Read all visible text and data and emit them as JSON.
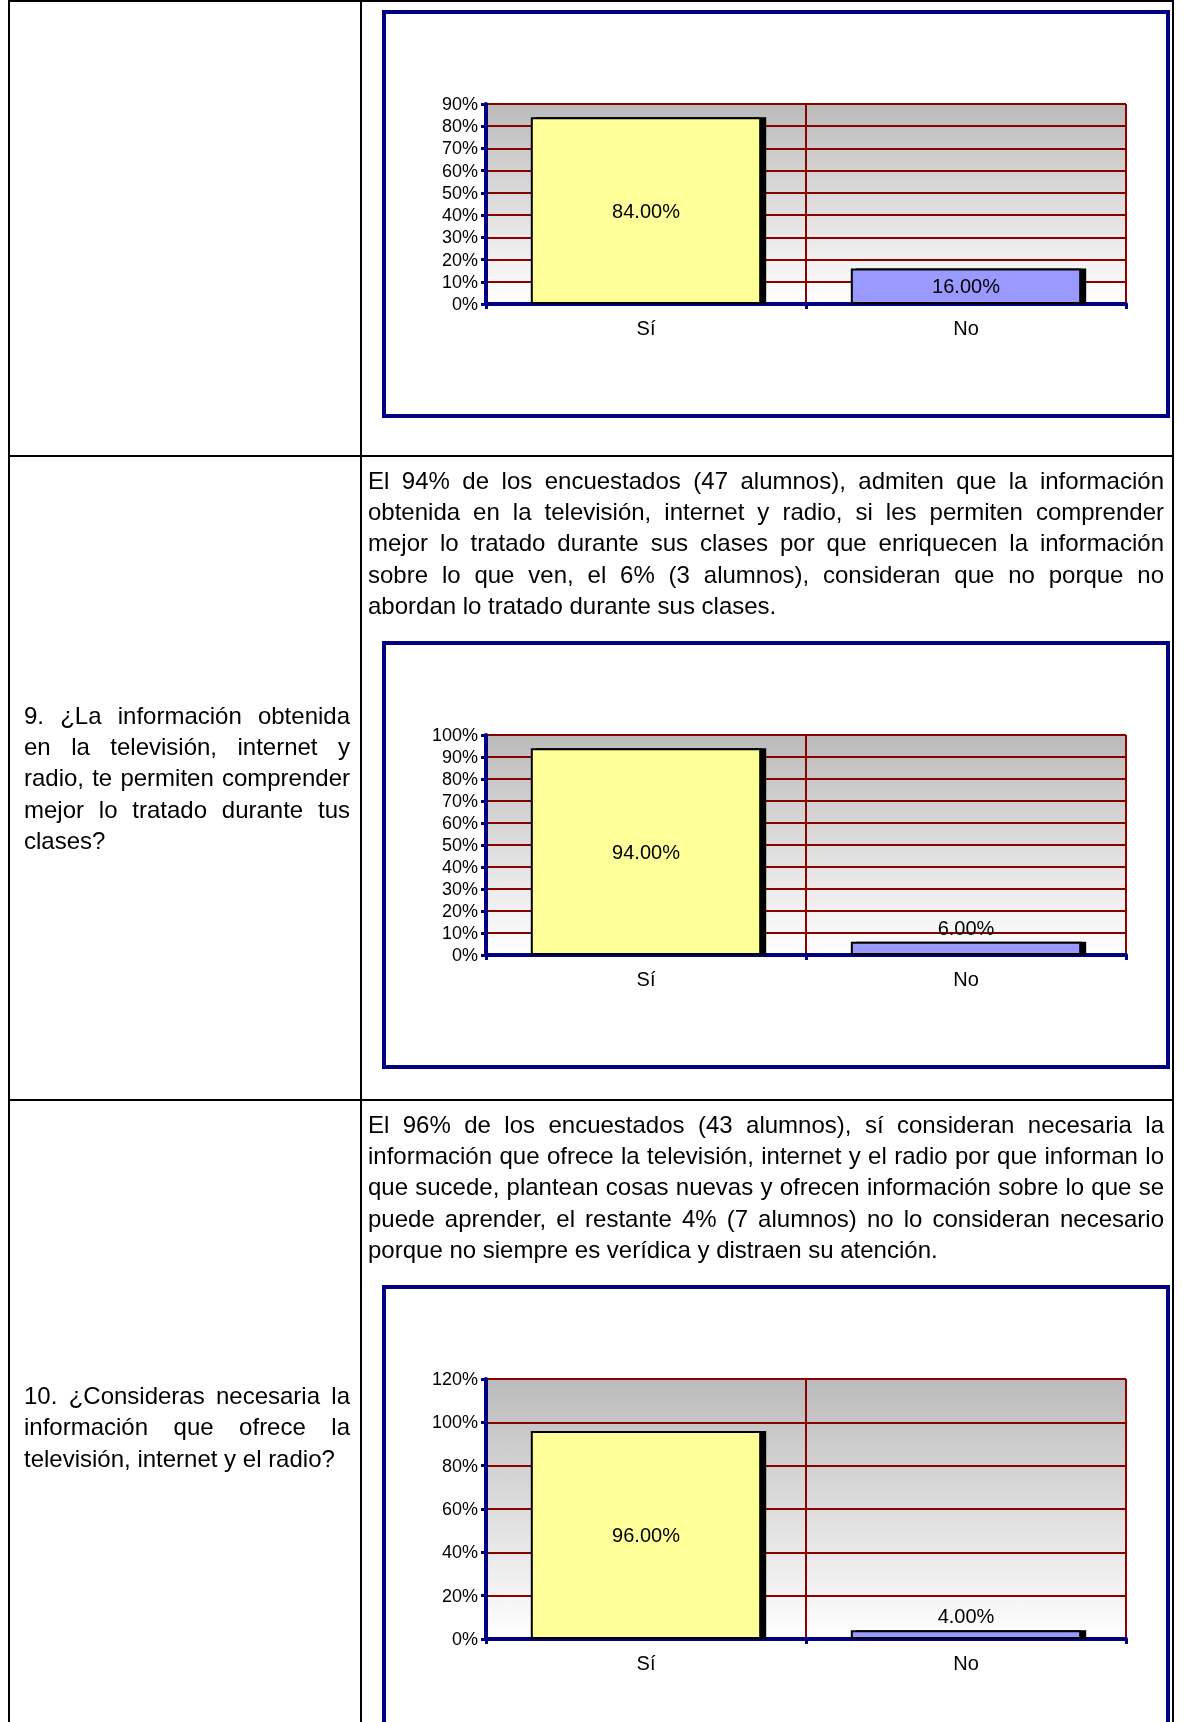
{
  "chart_data": [
    {
      "type": "bar",
      "categories": [
        "Sí",
        "No"
      ],
      "values": [
        84,
        16
      ],
      "colors": [
        "#ffff99",
        "#9999ff"
      ],
      "value_labels": [
        "84.00%",
        "16.00%"
      ],
      "ylim": [
        0,
        90
      ],
      "yticks": [
        {
          "value": 0,
          "label": "0%"
        },
        {
          "value": 10,
          "label": "10%"
        },
        {
          "value": 20,
          "label": "20%"
        },
        {
          "value": 30,
          "label": "30%"
        },
        {
          "value": 40,
          "label": "40%"
        },
        {
          "value": 50,
          "label": "50%"
        },
        {
          "value": 60,
          "label": "60%"
        },
        {
          "value": 70,
          "label": "70%"
        },
        {
          "value": 80,
          "label": "80%"
        },
        {
          "value": 90,
          "label": "90%"
        }
      ],
      "grid": true
    },
    {
      "type": "bar",
      "title": "9. ¿La información obtenida en la televisión, internet y radio, te permiten comprender mejor lo tratado durante tus clases?",
      "subtitle": "El 94% de los encuestados (47 alumnos), admiten que la información obtenida en la televisión, internet y radio, si les permiten comprender mejor lo tratado durante sus clases por que enriquecen la información sobre lo que ven, el 6% (3 alumnos), consideran que no porque no abordan lo tratado durante sus clases.",
      "categories": [
        "Sí",
        "No"
      ],
      "values": [
        94,
        6
      ],
      "colors": [
        "#ffff99",
        "#9999ff"
      ],
      "value_labels": [
        "94.00%",
        "6.00%"
      ],
      "ylim": [
        0,
        100
      ],
      "yticks": [
        {
          "value": 0,
          "label": "0%"
        },
        {
          "value": 10,
          "label": "10%"
        },
        {
          "value": 20,
          "label": "20%"
        },
        {
          "value": 30,
          "label": "30%"
        },
        {
          "value": 40,
          "label": "40%"
        },
        {
          "value": 50,
          "label": "50%"
        },
        {
          "value": 60,
          "label": "60%"
        },
        {
          "value": 70,
          "label": "70%"
        },
        {
          "value": 80,
          "label": "80%"
        },
        {
          "value": 90,
          "label": "90%"
        },
        {
          "value": 100,
          "label": "100%"
        }
      ],
      "grid": true
    },
    {
      "type": "bar",
      "title": "10. ¿Consideras necesaria la información que ofrece la televisión, internet y el radio?",
      "subtitle": "El 96% de los encuestados (43 alumnos), sí consideran necesaria la información que ofrece la televisión, internet y el radio por que informan lo que sucede, plantean cosas nuevas y ofrecen información sobre lo que se puede aprender, el restante 4% (7 alumnos) no lo consideran necesario porque no siempre es verídica y distraen su atención.",
      "categories": [
        "Sí",
        "No"
      ],
      "values": [
        96,
        4
      ],
      "colors": [
        "#ffff99",
        "#9999ff"
      ],
      "value_labels": [
        "96.00%",
        "4.00%"
      ],
      "ylim": [
        0,
        120
      ],
      "yticks": [
        {
          "value": 0,
          "label": "0%"
        },
        {
          "value": 20,
          "label": "20%"
        },
        {
          "value": 40,
          "label": "40%"
        },
        {
          "value": 60,
          "label": "60%"
        },
        {
          "value": 80,
          "label": "80%"
        },
        {
          "value": 100,
          "label": "100%"
        },
        {
          "value": 120,
          "label": "120%"
        }
      ],
      "grid": true
    }
  ]
}
